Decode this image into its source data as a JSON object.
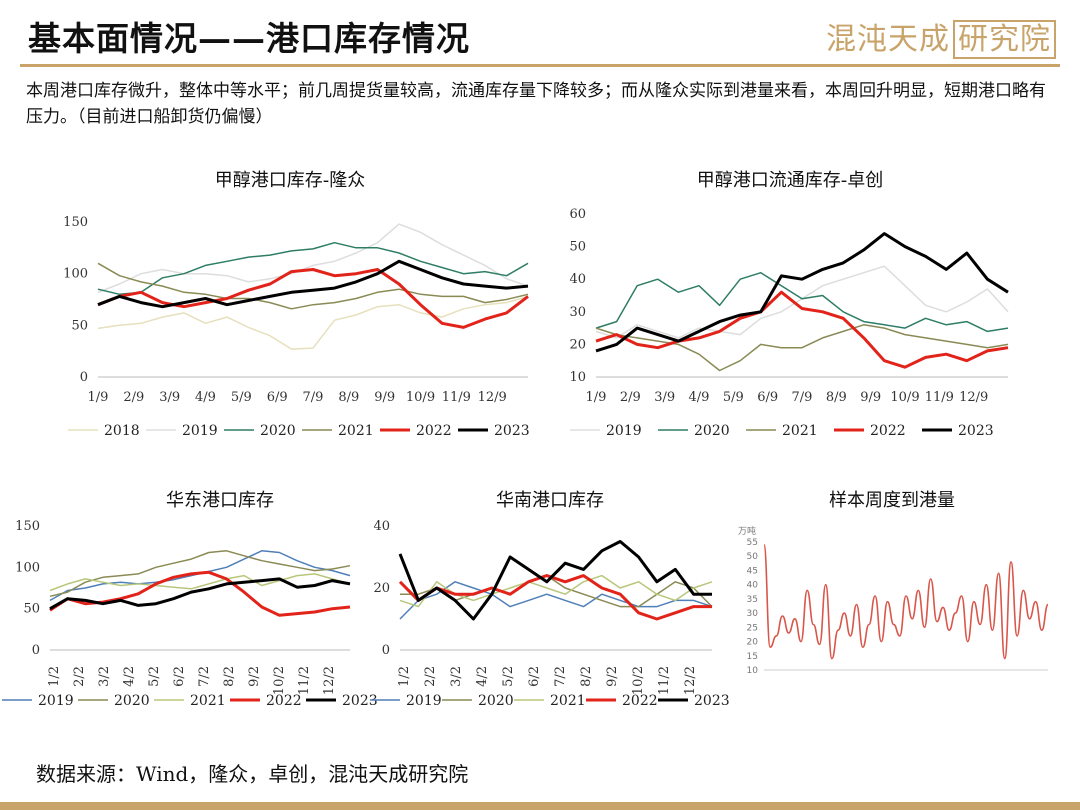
{
  "header": {
    "title": "基本面情况——港口库存情况",
    "logo_text": "混沌天成",
    "logo_boxed": "研究院"
  },
  "summary": "本周港口库存微升，整体中等水平；前几周提货量较高，流通库存量下降较多；而从隆众实际到港量来看，本周回升明显，短期港口略有压力。（目前进口船卸货仍偏慢）",
  "source": "数据来源：Wind，隆众，卓创，混沌天成研究院",
  "colors": {
    "2018": "#e6e0bd",
    "2019": "#dddddd",
    "2020": "#2e7d66",
    "2021": "#8a8a55",
    "2022": "#e2231a",
    "2023": "#000000",
    "2019b": "#4f7fb8",
    "2020b": "#8a8a55",
    "2021b": "#b7c77a",
    "accent": "#c8a46a"
  },
  "chart_data": [
    {
      "type": "line",
      "title": "甲醇港口库存-隆众",
      "x_ticks": [
        "1/9",
        "2/9",
        "3/9",
        "4/9",
        "5/9",
        "6/9",
        "7/9",
        "8/9",
        "9/9",
        "10/9",
        "11/9",
        "12/9"
      ],
      "ylim": [
        0,
        150
      ],
      "y_ticks": [
        0,
        50,
        100,
        150
      ],
      "legend": [
        "2018",
        "2019",
        "2020",
        "2021",
        "2022",
        "2023"
      ],
      "series": [
        {
          "name": "2018",
          "values": [
            47,
            50,
            52,
            58,
            62,
            52,
            58,
            48,
            40,
            27,
            28,
            55,
            60,
            68,
            70,
            62,
            58,
            66,
            70,
            72,
            78
          ]
        },
        {
          "name": "2019",
          "values": [
            82,
            90,
            100,
            104,
            100,
            100,
            98,
            92,
            95,
            100,
            108,
            112,
            120,
            130,
            148,
            140,
            128,
            118,
            108,
            95,
            88
          ]
        },
        {
          "name": "2020",
          "values": [
            85,
            80,
            82,
            96,
            100,
            108,
            112,
            116,
            118,
            122,
            124,
            130,
            125,
            125,
            120,
            112,
            106,
            100,
            102,
            98,
            110
          ]
        },
        {
          "name": "2021",
          "values": [
            110,
            98,
            92,
            88,
            82,
            80,
            76,
            76,
            72,
            66,
            70,
            72,
            76,
            82,
            85,
            80,
            78,
            78,
            72,
            75,
            80
          ]
        },
        {
          "name": "2022",
          "values": [
            70,
            78,
            82,
            72,
            68,
            72,
            76,
            84,
            90,
            102,
            104,
            98,
            100,
            104,
            90,
            70,
            52,
            48,
            56,
            62,
            78
          ]
        },
        {
          "name": "2023",
          "values": [
            70,
            78,
            72,
            68,
            72,
            76,
            70,
            74,
            78,
            82,
            84,
            86,
            92,
            100,
            112,
            104,
            96,
            90,
            88,
            86,
            88
          ]
        }
      ]
    },
    {
      "type": "line",
      "title": "甲醇港口流通库存-卓创",
      "x_ticks": [
        "1/9",
        "2/9",
        "3/9",
        "4/9",
        "5/9",
        "6/9",
        "7/9",
        "8/9",
        "9/9",
        "10/9",
        "11/9",
        "12/9"
      ],
      "ylim": [
        10,
        60
      ],
      "y_ticks": [
        10,
        20,
        30,
        40,
        50,
        60
      ],
      "legend": [
        "2019",
        "2020",
        "2021",
        "2022",
        "2023"
      ],
      "series": [
        {
          "name": "2019",
          "values": [
            24,
            22,
            26,
            24,
            22,
            25,
            24,
            23,
            28,
            30,
            34,
            38,
            40,
            42,
            44,
            38,
            32,
            30,
            33,
            37,
            30
          ]
        },
        {
          "name": "2020",
          "values": [
            25,
            27,
            38,
            40,
            36,
            38,
            32,
            40,
            42,
            38,
            34,
            35,
            30,
            27,
            26,
            25,
            28,
            26,
            27,
            24,
            25
          ]
        },
        {
          "name": "2021",
          "values": [
            25,
            23,
            22,
            21,
            20,
            17,
            12,
            15,
            20,
            19,
            19,
            22,
            24,
            26,
            25,
            23,
            22,
            21,
            20,
            19,
            20
          ]
        },
        {
          "name": "2022",
          "values": [
            21,
            23,
            20,
            19,
            21,
            22,
            24,
            28,
            30,
            36,
            31,
            30,
            28,
            22,
            15,
            13,
            16,
            17,
            15,
            18,
            19
          ]
        },
        {
          "name": "2023",
          "values": [
            18,
            20,
            25,
            23,
            21,
            24,
            27,
            29,
            30,
            41,
            40,
            43,
            45,
            49,
            54,
            50,
            47,
            43,
            48,
            40,
            36
          ]
        }
      ]
    },
    {
      "type": "line",
      "title": "华东港口库存",
      "x_ticks": [
        "1/2",
        "2/2",
        "3/2",
        "4/2",
        "5/2",
        "6/2",
        "7/2",
        "8/2",
        "9/2",
        "10/2",
        "11/2",
        "12/2"
      ],
      "ylim": [
        0,
        150
      ],
      "y_ticks": [
        0,
        50,
        100,
        150
      ],
      "legend": [
        "2019",
        "2020",
        "2021",
        "2022",
        "2023"
      ],
      "series": [
        {
          "name": "2019",
          "values": [
            60,
            72,
            75,
            80,
            82,
            80,
            82,
            85,
            90,
            95,
            100,
            110,
            120,
            118,
            108,
            100,
            96,
            90
          ]
        },
        {
          "name": "2020",
          "values": [
            65,
            70,
            82,
            88,
            90,
            92,
            100,
            105,
            110,
            118,
            120,
            114,
            108,
            104,
            100,
            96,
            98,
            102
          ]
        },
        {
          "name": "2021",
          "values": [
            72,
            80,
            86,
            82,
            78,
            80,
            78,
            76,
            74,
            80,
            86,
            90,
            78,
            84,
            90,
            92,
            86,
            80
          ]
        },
        {
          "name": "2022",
          "values": [
            48,
            62,
            56,
            58,
            62,
            68,
            80,
            88,
            92,
            94,
            86,
            70,
            52,
            42,
            44,
            46,
            50,
            52
          ]
        },
        {
          "name": "2023",
          "values": [
            50,
            62,
            60,
            56,
            60,
            54,
            56,
            62,
            70,
            74,
            80,
            82,
            84,
            86,
            76,
            78,
            84,
            80
          ]
        }
      ]
    },
    {
      "type": "line",
      "title": "华南港口库存",
      "x_ticks": [
        "1/2",
        "2/2",
        "3/2",
        "4/2",
        "5/2",
        "6/2",
        "7/2",
        "8/2",
        "9/2",
        "10/2",
        "11/2",
        "12/2"
      ],
      "ylim": [
        0,
        40
      ],
      "y_ticks": [
        0,
        20,
        40
      ],
      "legend": [
        "2019",
        "2020",
        "2021",
        "2022",
        "2023"
      ],
      "series": [
        {
          "name": "2019",
          "values": [
            10,
            16,
            18,
            22,
            20,
            18,
            14,
            16,
            18,
            16,
            14,
            18,
            16,
            14,
            14,
            16,
            16,
            14
          ]
        },
        {
          "name": "2020",
          "values": [
            18,
            18,
            20,
            16,
            18,
            20,
            18,
            22,
            24,
            20,
            18,
            16,
            14,
            14,
            18,
            22,
            20,
            14
          ]
        },
        {
          "name": "2021",
          "values": [
            16,
            14,
            22,
            18,
            16,
            18,
            20,
            22,
            20,
            18,
            22,
            24,
            20,
            22,
            18,
            16,
            20,
            22
          ]
        },
        {
          "name": "2022",
          "values": [
            22,
            16,
            20,
            18,
            18,
            20,
            18,
            22,
            24,
            22,
            24,
            20,
            18,
            12,
            10,
            12,
            14,
            14
          ]
        },
        {
          "name": "2023",
          "values": [
            31,
            16,
            20,
            16,
            10,
            18,
            30,
            26,
            22,
            28,
            26,
            32,
            35,
            30,
            22,
            26,
            18,
            18
          ]
        }
      ]
    },
    {
      "type": "line",
      "title": "样本周度到港量",
      "unit": "万吨",
      "ylim": [
        10,
        55
      ],
      "y_ticks": [
        10,
        15,
        20,
        25,
        30,
        35,
        40,
        45,
        50,
        55
      ],
      "series": [
        {
          "name": "",
          "values": [
            54,
            18,
            22,
            29,
            23,
            28,
            20,
            38,
            26,
            19,
            40,
            14,
            24,
            30,
            22,
            33,
            18,
            26,
            36,
            20,
            34,
            26,
            22,
            36,
            28,
            38,
            25,
            42,
            27,
            32,
            24,
            30,
            36,
            20,
            34,
            26,
            40,
            24,
            44,
            14,
            48,
            22,
            38,
            28,
            34,
            24,
            33
          ]
        }
      ]
    }
  ]
}
